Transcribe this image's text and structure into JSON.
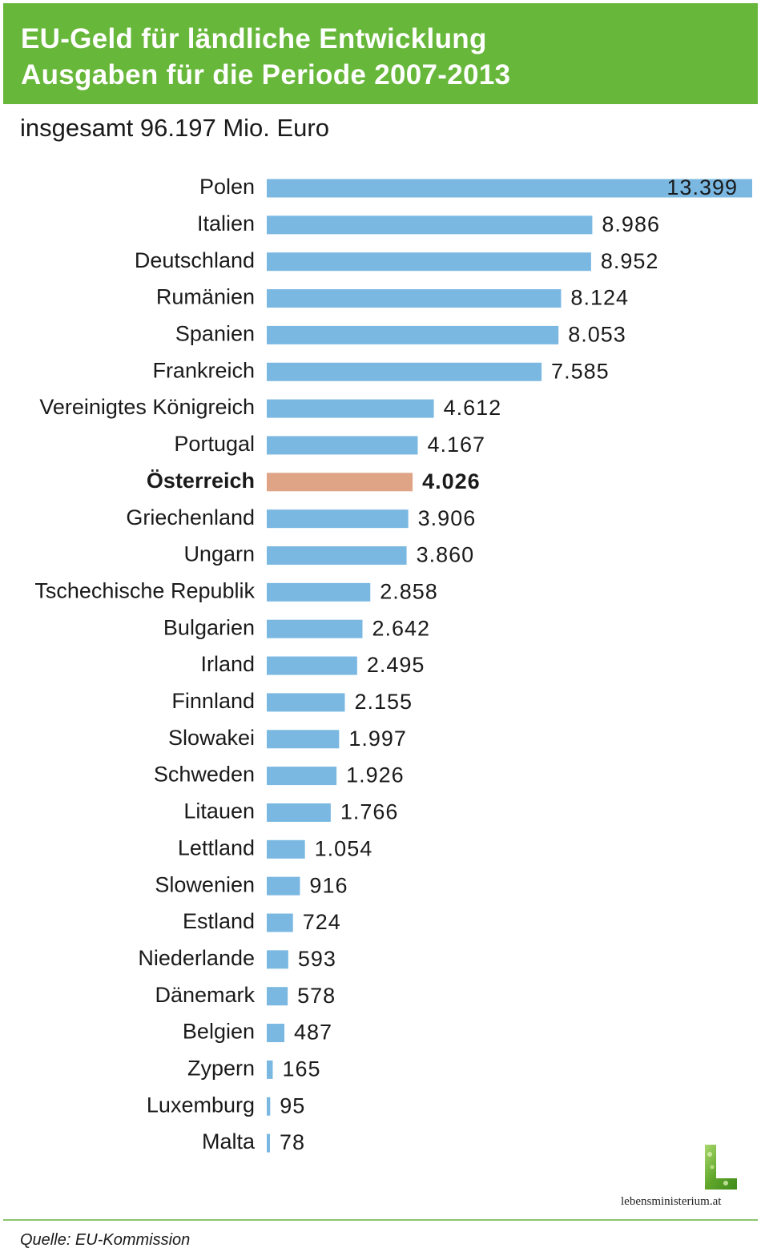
{
  "header": {
    "title_line1": "EU-Geld für ländliche Entwicklung",
    "title_line2": "Ausgaben für die Periode 2007-2013"
  },
  "subtitle": "insgesamt 96.197 Mio. Euro",
  "chart_data": {
    "type": "bar",
    "orientation": "horizontal",
    "categories": [
      "Polen",
      "Italien",
      "Deutschland",
      "Rumänien",
      "Spanien",
      "Frankreich",
      "Vereinigtes Königreich",
      "Portugal",
      "Österreich",
      "Griechenland",
      "Ungarn",
      "Tschechische  Republik",
      "Bulgarien",
      "Irland",
      "Finnland",
      "Slowakei",
      "Schweden",
      "Litauen",
      "Lettland",
      "Slowenien",
      "Estland",
      "Niederlande",
      "Dänemark",
      "Belgien",
      "Zypern",
      "Luxemburg",
      "Malta"
    ],
    "values": [
      13399,
      8986,
      8952,
      8124,
      8053,
      7585,
      4612,
      4167,
      4026,
      3906,
      3860,
      2858,
      2642,
      2495,
      2155,
      1997,
      1926,
      1766,
      1054,
      916,
      724,
      593,
      578,
      487,
      165,
      95,
      78
    ],
    "value_labels": [
      "13.399",
      "8.986",
      "8.952",
      "8.124",
      "8.053",
      "7.585",
      "4.612",
      "4.167",
      "4.026",
      "3.906",
      "3.860",
      "2.858",
      "2.642",
      "2.495",
      "2.155",
      "1.997",
      "1.926",
      "1.766",
      "1.054",
      "916",
      "724",
      "593",
      "578",
      "487",
      "165",
      "95",
      "78"
    ],
    "highlight": "Österreich",
    "title": "EU-Geld für ländliche Entwicklung Ausgaben für die Periode 2007-2013",
    "xlabel": "",
    "ylabel": "",
    "xlim": [
      0,
      13399
    ],
    "grid": false,
    "legend": "none",
    "colors": {
      "bar": "#7ab8e2",
      "highlight": "#dfa386"
    }
  },
  "logo": {
    "text": "lebensministerium.at",
    "icon": "leaf-l-logo-icon"
  },
  "source": "Quelle: EU-Kommission",
  "colors": {
    "header_bg": "#67b73a",
    "footer_rule": "#8cc56b"
  }
}
